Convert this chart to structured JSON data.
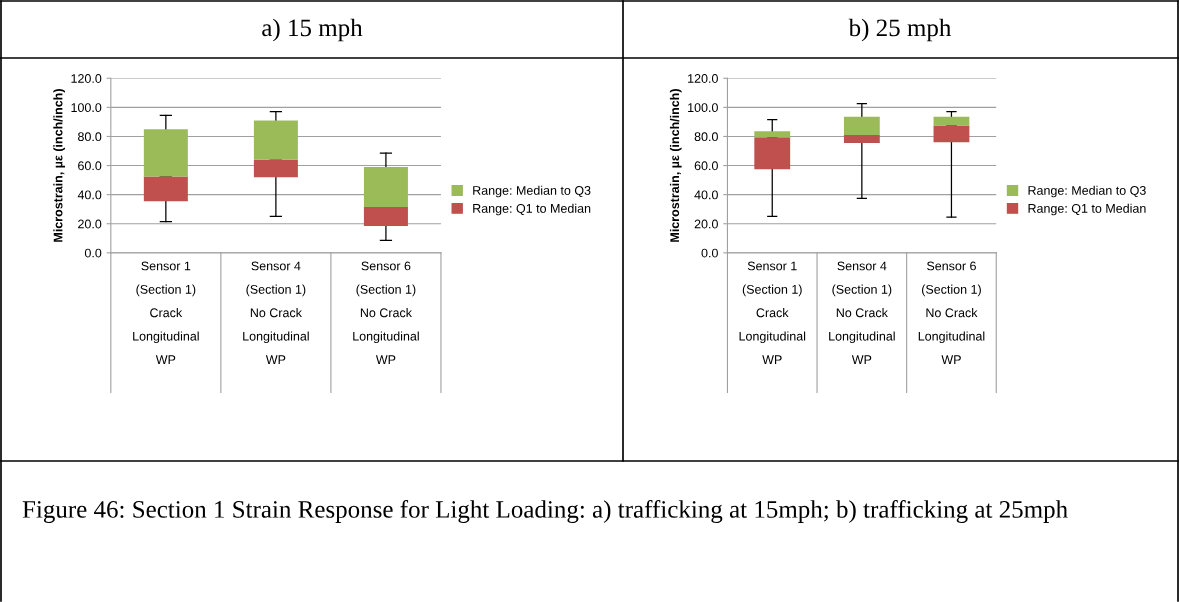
{
  "chart_data": [
    {
      "type": "bar",
      "title": "a) 15 mph",
      "ylabel": "Microstrain, µε (inch/inch)",
      "categories": [
        "Sensor 1\n(Section 1)\nCrack\nLongitudinal\nWP",
        "Sensor 4\n(Section 1)\nNo Crack\nLongitudinal\nWP",
        "Sensor 6\n(Section 1)\nNo Crack\nLongitudinal\nWP"
      ],
      "series": [
        {
          "name": "Range: Q1 to Median",
          "color": "#c0504d",
          "base": [
            35.5,
            52,
            18.5
          ],
          "values": [
            17,
            12,
            13
          ],
          "errors": [
            [
              21.5,
              52.5
            ],
            [
              25,
              64
            ],
            [
              8.5,
              31.5
            ]
          ]
        },
        {
          "name": "Range: Median to Q3",
          "color": "#9bbb59",
          "base": [
            52.5,
            64,
            31.5
          ],
          "values": [
            32.5,
            27,
            27.5
          ],
          "errors": [
            [
              52.5,
              94.5
            ],
            [
              64,
              97
            ],
            [
              31.5,
              68.5
            ]
          ]
        }
      ],
      "ylim": [
        0,
        120
      ],
      "yticks": [
        {
          "value": 0,
          "label": "0.0"
        },
        {
          "value": 20,
          "label": "20.0"
        },
        {
          "value": 40,
          "label": "40.0"
        },
        {
          "value": 60,
          "label": "60.0"
        },
        {
          "value": 80,
          "label": "80.0"
        },
        {
          "value": 100,
          "label": "100.0"
        },
        {
          "value": 120,
          "label": "120.0"
        }
      ],
      "grid": "y",
      "legend": "right",
      "annotations": [
        "Figure 46: Section 1 Strain Response for Light Loading: a) trafficking at 15mph; b) trafficking at 25mph"
      ]
    },
    {
      "type": "bar",
      "title": "b) 25 mph",
      "ylabel": "Microstrain, µε (inch/inch)",
      "categories": [
        "Sensor 1\n(Section 1)\nCrack\nLongitudinal\nWP",
        "Sensor 4\n(Section 1)\nNo Crack\nLongitudinal\nWP",
        "Sensor 6\n(Section 1)\nNo Crack\nLongitudinal\nWP"
      ],
      "series": [
        {
          "name": "Range: Q1 to Median",
          "color": "#c0504d",
          "base": [
            57.5,
            75.5,
            76
          ],
          "values": [
            22,
            5.5,
            11.5
          ],
          "errors": [
            [
              25,
              79.5
            ],
            [
              37.5,
              81
            ],
            [
              24.5,
              87.5
            ]
          ]
        },
        {
          "name": "Range: Median to Q3",
          "color": "#9bbb59",
          "base": [
            79.5,
            81,
            87.5
          ],
          "values": [
            4,
            12.5,
            6
          ],
          "errors": [
            [
              79.5,
              91.5
            ],
            [
              81,
              102.5
            ],
            [
              87.5,
              97
            ]
          ]
        }
      ],
      "ylim": [
        0,
        120
      ],
      "yticks": [
        {
          "value": 0,
          "label": "0.0"
        },
        {
          "value": 20,
          "label": "20.0"
        },
        {
          "value": 40,
          "label": "40.0"
        },
        {
          "value": 60,
          "label": "60.0"
        },
        {
          "value": 80,
          "label": "80.0"
        },
        {
          "value": 100,
          "label": "100.0"
        },
        {
          "value": 120,
          "label": "120.0"
        }
      ],
      "grid": "y",
      "legend": "right"
    }
  ]
}
